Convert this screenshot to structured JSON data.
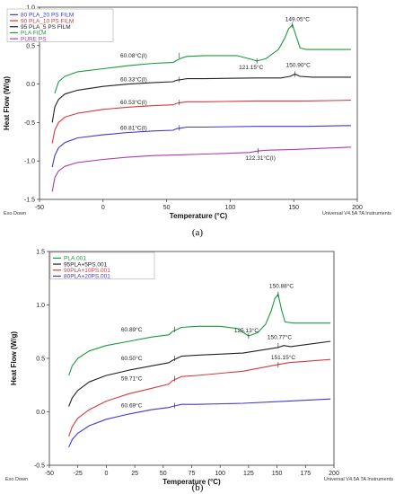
{
  "chart_data": [
    {
      "type": "line",
      "panel_caption": "(a)",
      "xlabel": "Temperature (°C)",
      "ylabel": "Heat Flow (W/g)",
      "xlim": [
        -50,
        200
      ],
      "ylim": [
        -1.5,
        1.0
      ],
      "x_ticks": [
        -50,
        0,
        50,
        100,
        150,
        200
      ],
      "y_ticks": [
        -1.5,
        -1.0,
        -0.5,
        0.0,
        0.5,
        1.0
      ],
      "x_tick_labels": [
        "-50",
        "0",
        "50",
        "100",
        "150",
        "200"
      ],
      "y_tick_labels": [
        "-1.5",
        "-1.0",
        "-0.5",
        "0.0",
        "0.5",
        "1.0"
      ],
      "footer_left": "Exo Down",
      "footer_right": "Universal V4.5A TA Instruments",
      "legend_position": "top-left",
      "series": [
        {
          "name": "80 PLA_20 PS FILM",
          "color": "#3b3bd6",
          "x": [
            -40,
            -38,
            -35,
            -30,
            -20,
            0,
            20,
            40,
            55,
            58,
            62,
            66,
            80,
            120,
            160,
            195
          ],
          "y": [
            -1.08,
            -0.93,
            -0.83,
            -0.76,
            -0.7,
            -0.66,
            -0.63,
            -0.61,
            -0.6,
            -0.58,
            -0.57,
            -0.56,
            -0.56,
            -0.55,
            -0.55,
            -0.54
          ]
        },
        {
          "name": "90 PLA_10 PS FILM",
          "color": "#d63b3b",
          "x": [
            -40,
            -38,
            -35,
            -30,
            -20,
            0,
            20,
            40,
            55,
            58,
            62,
            66,
            80,
            120,
            160,
            195
          ],
          "y": [
            -0.77,
            -0.6,
            -0.5,
            -0.43,
            -0.38,
            -0.33,
            -0.3,
            -0.28,
            -0.27,
            -0.25,
            -0.24,
            -0.23,
            -0.23,
            -0.22,
            -0.22,
            -0.21
          ]
        },
        {
          "name": "95 PLA_5 PS FILM",
          "color": "#222222",
          "x": [
            -40,
            -38,
            -35,
            -30,
            -20,
            0,
            20,
            40,
            55,
            58,
            62,
            66,
            80,
            120,
            140,
            147,
            151,
            155,
            165,
            195
          ],
          "y": [
            -0.5,
            -0.3,
            -0.2,
            -0.13,
            -0.08,
            -0.03,
            0.0,
            0.02,
            0.03,
            0.05,
            0.06,
            0.07,
            0.07,
            0.08,
            0.08,
            0.1,
            0.13,
            0.1,
            0.09,
            0.09
          ]
        },
        {
          "name": "PLA FILM",
          "color": "#1a9b3a",
          "x": [
            -38,
            -35,
            -30,
            -20,
            0,
            20,
            40,
            55,
            58,
            62,
            66,
            80,
            105,
            115,
            121,
            128,
            138,
            143,
            146,
            149,
            152,
            155,
            160,
            195
          ],
          "y": [
            -0.12,
            0.03,
            0.1,
            0.16,
            0.2,
            0.24,
            0.27,
            0.28,
            0.31,
            0.34,
            0.36,
            0.37,
            0.37,
            0.33,
            0.3,
            0.33,
            0.45,
            0.6,
            0.72,
            0.77,
            0.62,
            0.47,
            0.45,
            0.45
          ]
        },
        {
          "name": "PURE PS",
          "color": "#b03ab0",
          "x": [
            -40,
            -38,
            -35,
            -30,
            -20,
            0,
            20,
            40,
            60,
            80,
            100,
            115,
            122,
            130,
            150,
            195
          ],
          "y": [
            -1.4,
            -1.22,
            -1.13,
            -1.07,
            -1.02,
            -0.98,
            -0.95,
            -0.93,
            -0.92,
            -0.91,
            -0.9,
            -0.89,
            -0.87,
            -0.86,
            -0.85,
            -0.82
          ]
        }
      ],
      "annotations": [
        {
          "text": "60.08°C(I)",
          "x": 60,
          "y": 0.37
        },
        {
          "text": "121.15°C",
          "x": 121,
          "y": 0.3
        },
        {
          "text": "149.05°C",
          "x": 149,
          "y": 0.77
        },
        {
          "text": "60.33°C(I)",
          "x": 60,
          "y": 0.06
        },
        {
          "text": "150.90°C",
          "x": 151,
          "y": 0.13
        },
        {
          "text": "60.53°C(I)",
          "x": 60,
          "y": -0.24
        },
        {
          "text": "60.81°C(I)",
          "x": 60,
          "y": -0.57
        },
        {
          "text": "122.31°C(I)",
          "x": 122,
          "y": -0.87
        }
      ]
    },
    {
      "type": "line",
      "panel_caption": "(b)",
      "xlabel": "Temperature (°C)",
      "ylabel": "Heat Flow (W/g)",
      "xlim": [
        -50,
        200
      ],
      "ylim": [
        -0.5,
        1.5
      ],
      "x_ticks": [
        -50,
        -25,
        0,
        25,
        50,
        75,
        100,
        125,
        150,
        175,
        200
      ],
      "y_ticks": [
        -0.5,
        0.0,
        0.5,
        1.0,
        1.5
      ],
      "x_tick_labels": [
        "-50",
        "-25",
        "0",
        "25",
        "50",
        "75",
        "100",
        "125",
        "150",
        "175",
        "200"
      ],
      "y_tick_labels": [
        "-0.5",
        "0.0",
        "0.5",
        "1.0",
        "1.5"
      ],
      "footer_left": "Exo Down",
      "footer_right": "Universal V4.5A TA Instruments",
      "legend_position": "top-left",
      "series": [
        {
          "name": "PLA.001",
          "color": "#1a9b3a",
          "x": [
            -33,
            -30,
            -25,
            -15,
            0,
            20,
            40,
            55,
            58,
            62,
            66,
            80,
            100,
            115,
            125,
            133,
            140,
            145,
            148,
            151,
            154,
            157,
            165,
            197
          ],
          "y": [
            0.34,
            0.43,
            0.5,
            0.57,
            0.62,
            0.66,
            0.7,
            0.72,
            0.75,
            0.77,
            0.79,
            0.8,
            0.8,
            0.78,
            0.71,
            0.74,
            0.82,
            0.95,
            1.06,
            1.1,
            0.95,
            0.84,
            0.83,
            0.83
          ]
        },
        {
          "name": "95PLA+5PS.001",
          "color": "#222222",
          "x": [
            -33,
            -30,
            -25,
            -15,
            0,
            20,
            40,
            55,
            58,
            62,
            66,
            80,
            120,
            150,
            156,
            162,
            197
          ],
          "y": [
            0.05,
            0.13,
            0.2,
            0.28,
            0.34,
            0.39,
            0.43,
            0.46,
            0.48,
            0.5,
            0.52,
            0.53,
            0.55,
            0.6,
            0.62,
            0.61,
            0.66
          ]
        },
        {
          "name": "90PLA+10PS.001",
          "color": "#d63b3b",
          "x": [
            -33,
            -30,
            -25,
            -15,
            0,
            20,
            40,
            55,
            58,
            62,
            66,
            80,
            120,
            150,
            160,
            197
          ],
          "y": [
            -0.23,
            -0.14,
            -0.06,
            0.02,
            0.1,
            0.17,
            0.22,
            0.26,
            0.29,
            0.31,
            0.33,
            0.34,
            0.38,
            0.44,
            0.46,
            0.49
          ]
        },
        {
          "name": "80PLA+20PS.001",
          "color": "#3b3bd6",
          "x": [
            -33,
            -30,
            -25,
            -15,
            0,
            20,
            40,
            55,
            58,
            62,
            66,
            80,
            120,
            160,
            197
          ],
          "y": [
            -0.33,
            -0.26,
            -0.2,
            -0.13,
            -0.07,
            -0.02,
            0.02,
            0.04,
            0.05,
            0.06,
            0.07,
            0.07,
            0.08,
            0.1,
            0.12
          ]
        }
      ],
      "annotations": [
        {
          "text": "150.88°C",
          "x": 151,
          "y": 1.1
        },
        {
          "text": "60.89°C",
          "x": 60,
          "y": 0.77
        },
        {
          "text": "125.13°C",
          "x": 125,
          "y": 0.71
        },
        {
          "text": "150.77°C",
          "x": 151,
          "y": 0.62
        },
        {
          "text": "60.50°C",
          "x": 60,
          "y": 0.5
        },
        {
          "text": "151.15°C",
          "x": 151,
          "y": 0.44
        },
        {
          "text": "59.71°C",
          "x": 60,
          "y": 0.31
        },
        {
          "text": "60.69°C",
          "x": 60,
          "y": 0.06
        }
      ]
    }
  ]
}
